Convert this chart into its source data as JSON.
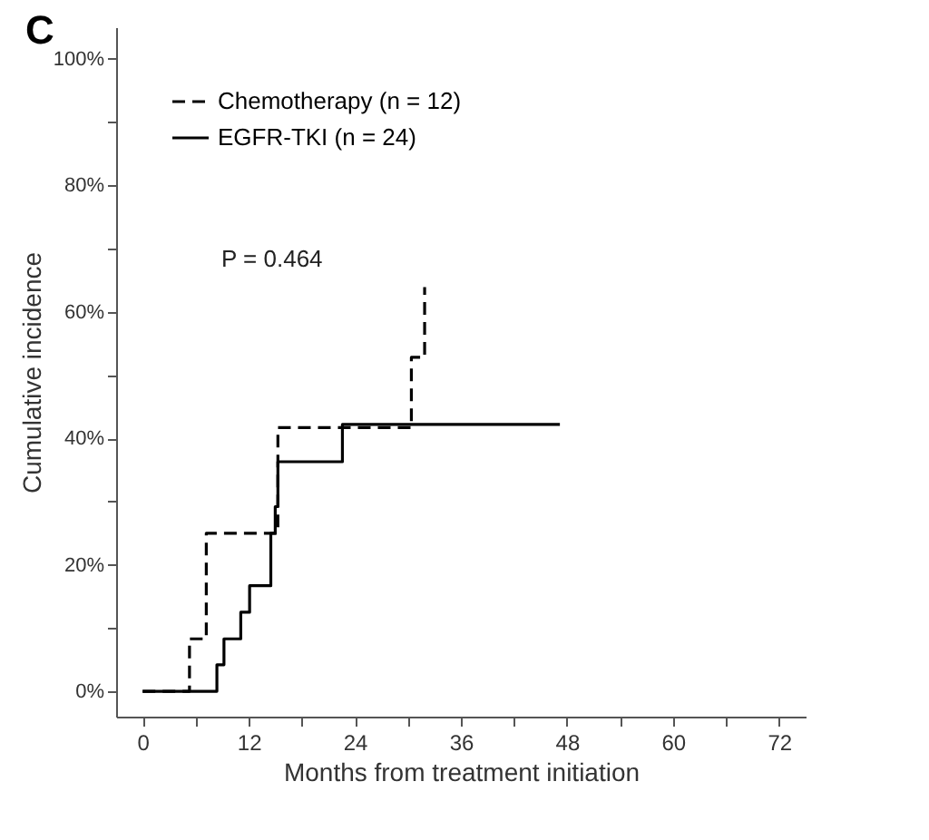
{
  "chart_data": {
    "type": "step",
    "title": "C",
    "xlabel": "Months from treatment initiation",
    "ylabel": "Cumulative incidence",
    "series": [
      {
        "name": "Chemotherapy (n = 12)",
        "color": "#000000",
        "line_style": "dashed",
        "x": [
          0,
          5.3,
          7.2,
          15.3,
          30.4,
          31.9
        ],
        "values": [
          0,
          8.3,
          25,
          41.7,
          52.8,
          63.9
        ]
      },
      {
        "name": "EGFR-TKI (n = 24)",
        "color": "#000000",
        "line_style": "solid",
        "x": [
          0,
          8.4,
          9.2,
          11.1,
          12.1,
          14.5,
          15.0,
          15.3,
          22.6,
          47.2
        ],
        "values": [
          0,
          4.2,
          8.3,
          12.5,
          16.7,
          25,
          29.2,
          36.3,
          42.2,
          42.2
        ]
      }
    ],
    "annotations": [
      "P = 0.464"
    ],
    "xlim": [
      -3,
      75
    ],
    "ylim": [
      -4,
      105
    ],
    "xticks": [
      0,
      {
        "value": 6,
        "label": null
      },
      12,
      {
        "value": 18,
        "label": null
      },
      24,
      {
        "value": 30,
        "label": null
      },
      36,
      {
        "value": 42,
        "label": null
      },
      48,
      {
        "value": 54,
        "label": null
      },
      60,
      {
        "value": 66,
        "label": null
      },
      72
    ],
    "yticks": [
      {
        "value": 0,
        "label": "0%"
      },
      {
        "value": 10,
        "label": null
      },
      {
        "value": 20,
        "label": "20%"
      },
      {
        "value": 30,
        "label": null
      },
      {
        "value": 40,
        "label": "40%"
      },
      {
        "value": 50,
        "label": null
      },
      {
        "value": 60,
        "label": "60%"
      },
      {
        "value": 70,
        "label": null
      },
      {
        "value": 80,
        "label": "80%"
      },
      {
        "value": 90,
        "label": null
      },
      {
        "value": 100,
        "label": "100%"
      }
    ],
    "grid": false,
    "legend": "top left",
    "marker": "none"
  }
}
